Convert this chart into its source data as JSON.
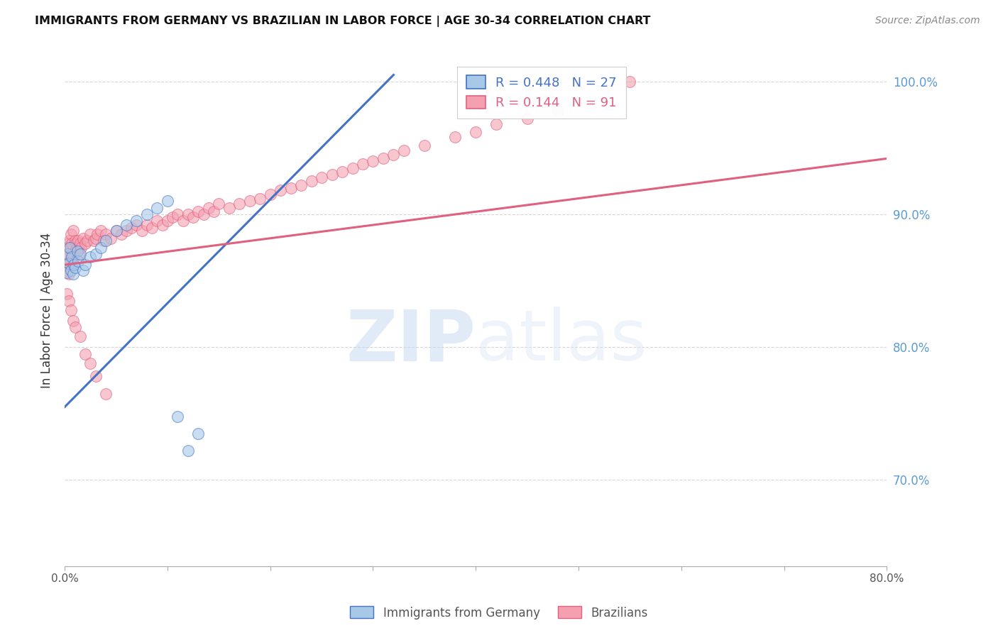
{
  "title": "IMMIGRANTS FROM GERMANY VS BRAZILIAN IN LABOR FORCE | AGE 30-34 CORRELATION CHART",
  "source": "Source: ZipAtlas.com",
  "ylabel": "In Labor Force | Age 30-34",
  "xlim": [
    0.0,
    0.8
  ],
  "ylim": [
    0.635,
    1.02
  ],
  "yticks": [
    0.7,
    0.8,
    0.9,
    1.0
  ],
  "ytick_labels": [
    "70.0%",
    "80.0%",
    "90.0%",
    "100.0%"
  ],
  "xticks": [
    0.0,
    0.1,
    0.2,
    0.3,
    0.4,
    0.5,
    0.6,
    0.7,
    0.8
  ],
  "xtick_labels": [
    "0.0%",
    "",
    "",
    "",
    "",
    "",
    "",
    "",
    "80.0%"
  ],
  "legend_r_germany": "R = 0.448",
  "legend_n_germany": "N = 27",
  "legend_r_brazil": "R = 0.144",
  "legend_n_brazil": "N = 91",
  "color_germany": "#a8c8e8",
  "color_brazil": "#f4a0b0",
  "color_germany_line": "#4472c4",
  "color_brazil_line": "#e06080",
  "color_ytick": "#5b9bd5",
  "watermark_zip": "ZIP",
  "watermark_atlas": "atlas",
  "germany_x": [
    0.002,
    0.003,
    0.004,
    0.005,
    0.006,
    0.007,
    0.008,
    0.009,
    0.01,
    0.012,
    0.013,
    0.015,
    0.018,
    0.02,
    0.025,
    0.03,
    0.035,
    0.04,
    0.05,
    0.06,
    0.07,
    0.08,
    0.09,
    0.1,
    0.11,
    0.12,
    0.13
  ],
  "germany_y": [
    0.856,
    0.87,
    0.863,
    0.875,
    0.858,
    0.868,
    0.855,
    0.862,
    0.86,
    0.872,
    0.865,
    0.87,
    0.858,
    0.862,
    0.868,
    0.87,
    0.875,
    0.88,
    0.888,
    0.892,
    0.895,
    0.9,
    0.905,
    0.91,
    0.748,
    0.722,
    0.735
  ],
  "brazil_x": [
    0.001,
    0.002,
    0.002,
    0.003,
    0.003,
    0.004,
    0.004,
    0.005,
    0.005,
    0.006,
    0.006,
    0.007,
    0.007,
    0.008,
    0.008,
    0.009,
    0.01,
    0.01,
    0.011,
    0.012,
    0.013,
    0.014,
    0.015,
    0.016,
    0.018,
    0.02,
    0.022,
    0.025,
    0.028,
    0.03,
    0.032,
    0.035,
    0.038,
    0.04,
    0.045,
    0.05,
    0.055,
    0.06,
    0.065,
    0.07,
    0.075,
    0.08,
    0.085,
    0.09,
    0.095,
    0.1,
    0.105,
    0.11,
    0.115,
    0.12,
    0.125,
    0.13,
    0.135,
    0.14,
    0.145,
    0.15,
    0.16,
    0.17,
    0.18,
    0.19,
    0.2,
    0.21,
    0.22,
    0.23,
    0.24,
    0.25,
    0.26,
    0.27,
    0.28,
    0.29,
    0.3,
    0.31,
    0.32,
    0.33,
    0.35,
    0.38,
    0.4,
    0.42,
    0.45,
    0.48,
    0.002,
    0.004,
    0.006,
    0.008,
    0.01,
    0.015,
    0.02,
    0.025,
    0.03,
    0.04,
    0.55
  ],
  "brazil_y": [
    0.858,
    0.862,
    0.87,
    0.875,
    0.868,
    0.878,
    0.855,
    0.88,
    0.865,
    0.875,
    0.885,
    0.87,
    0.878,
    0.862,
    0.888,
    0.868,
    0.872,
    0.88,
    0.878,
    0.875,
    0.88,
    0.87,
    0.878,
    0.875,
    0.882,
    0.878,
    0.88,
    0.885,
    0.88,
    0.882,
    0.885,
    0.888,
    0.88,
    0.885,
    0.882,
    0.888,
    0.885,
    0.888,
    0.89,
    0.892,
    0.888,
    0.892,
    0.89,
    0.895,
    0.892,
    0.895,
    0.898,
    0.9,
    0.895,
    0.9,
    0.898,
    0.902,
    0.9,
    0.905,
    0.902,
    0.908,
    0.905,
    0.908,
    0.91,
    0.912,
    0.915,
    0.918,
    0.92,
    0.922,
    0.925,
    0.928,
    0.93,
    0.932,
    0.935,
    0.938,
    0.94,
    0.942,
    0.945,
    0.948,
    0.952,
    0.958,
    0.962,
    0.968,
    0.972,
    0.978,
    0.84,
    0.835,
    0.828,
    0.82,
    0.815,
    0.808,
    0.795,
    0.788,
    0.778,
    0.765,
    1.0
  ],
  "ger_line_x": [
    0.0,
    0.32
  ],
  "ger_line_y": [
    0.755,
    1.005
  ],
  "bra_line_x": [
    0.0,
    0.8
  ],
  "bra_line_y": [
    0.862,
    0.942
  ]
}
